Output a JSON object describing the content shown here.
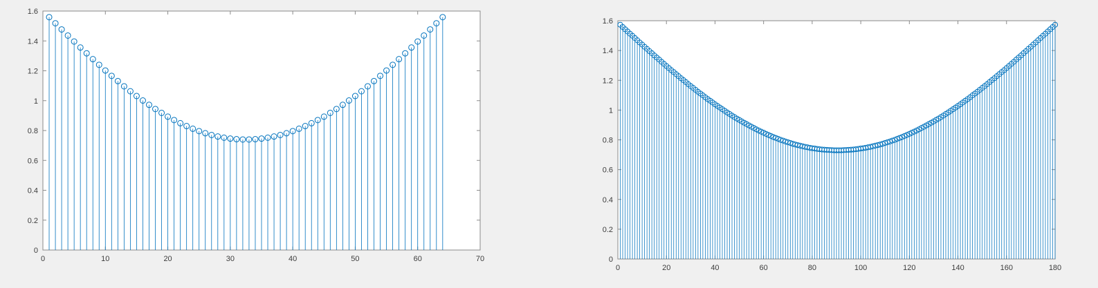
{
  "figure": {
    "background_color": "#f0f0f0",
    "plot_background_color": "#ffffff",
    "axis_box_color": "#8a8a8a",
    "tick_label_color": "#3c3c3c",
    "stem_color": "#0072BD"
  },
  "chart_data": [
    {
      "type": "stem",
      "title": "",
      "xlabel": "",
      "ylabel": "",
      "grid": false,
      "legend": null,
      "marker": "open-circle",
      "xlim": [
        0,
        70
      ],
      "ylim": [
        0,
        1.6
      ],
      "xticks": [
        0,
        10,
        20,
        30,
        40,
        50,
        60,
        70
      ],
      "xtick_labels": [
        "0",
        "10",
        "20",
        "30",
        "40",
        "50",
        "60",
        "70"
      ],
      "yticks": [
        0,
        0.2,
        0.4,
        0.6,
        0.8,
        1,
        1.2,
        1.4,
        1.6
      ],
      "ytick_labels": [
        "0",
        "0.2",
        "0.4",
        "0.6",
        "0.8",
        "1",
        "1.2",
        "1.4",
        "1.6"
      ],
      "x_start": 1,
      "x_description": "integer sample indices 1..64",
      "values": [
        1.559,
        1.518,
        1.477,
        1.436,
        1.396,
        1.356,
        1.317,
        1.278,
        1.24,
        1.202,
        1.166,
        1.131,
        1.096,
        1.063,
        1.031,
        1.001,
        0.972,
        0.944,
        0.918,
        0.893,
        0.87,
        0.849,
        0.83,
        0.812,
        0.796,
        0.782,
        0.77,
        0.76,
        0.752,
        0.746,
        0.742,
        0.74,
        0.74,
        0.742,
        0.746,
        0.752,
        0.76,
        0.77,
        0.782,
        0.796,
        0.812,
        0.83,
        0.849,
        0.87,
        0.893,
        0.918,
        0.944,
        0.972,
        1.001,
        1.031,
        1.063,
        1.096,
        1.131,
        1.166,
        1.202,
        1.24,
        1.278,
        1.317,
        1.356,
        1.396,
        1.436,
        1.477,
        1.518,
        1.559
      ]
    },
    {
      "type": "stem",
      "title": "",
      "xlabel": "",
      "ylabel": "",
      "grid": false,
      "legend": null,
      "marker": "open-circle",
      "xlim": [
        0,
        180
      ],
      "ylim": [
        0,
        1.6
      ],
      "xticks": [
        0,
        20,
        40,
        60,
        80,
        100,
        120,
        140,
        160,
        180
      ],
      "xtick_labels": [
        "0",
        "20",
        "40",
        "60",
        "80",
        "100",
        "120",
        "140",
        "160",
        "180"
      ],
      "yticks": [
        0,
        0.2,
        0.4,
        0.6,
        0.8,
        1,
        1.2,
        1.4,
        1.6
      ],
      "ytick_labels": [
        "0",
        "0.2",
        "0.4",
        "0.6",
        "0.8",
        "1",
        "1.2",
        "1.4",
        "1.6"
      ],
      "x_start": 1,
      "x_description": "integer sample indices 1..180",
      "values": [
        1.573,
        1.558,
        1.543,
        1.528,
        1.513,
        1.499,
        1.484,
        1.469,
        1.454,
        1.44,
        1.425,
        1.411,
        1.396,
        1.382,
        1.367,
        1.353,
        1.339,
        1.324,
        1.31,
        1.296,
        1.282,
        1.268,
        1.255,
        1.241,
        1.228,
        1.214,
        1.201,
        1.188,
        1.174,
        1.161,
        1.149,
        1.136,
        1.123,
        1.111,
        1.099,
        1.086,
        1.074,
        1.063,
        1.051,
        1.039,
        1.028,
        1.017,
        1.006,
        0.995,
        0.984,
        0.974,
        0.963,
        0.953,
        0.943,
        0.934,
        0.924,
        0.915,
        0.906,
        0.897,
        0.888,
        0.88,
        0.871,
        0.863,
        0.855,
        0.848,
        0.84,
        0.833,
        0.826,
        0.819,
        0.813,
        0.807,
        0.8,
        0.795,
        0.789,
        0.784,
        0.779,
        0.774,
        0.769,
        0.765,
        0.761,
        0.757,
        0.753,
        0.75,
        0.747,
        0.744,
        0.742,
        0.739,
        0.737,
        0.735,
        0.734,
        0.733,
        0.732,
        0.731,
        0.73,
        0.73,
        0.73,
        0.73,
        0.731,
        0.732,
        0.733,
        0.734,
        0.735,
        0.737,
        0.739,
        0.742,
        0.744,
        0.747,
        0.75,
        0.753,
        0.757,
        0.761,
        0.765,
        0.769,
        0.774,
        0.779,
        0.784,
        0.789,
        0.795,
        0.8,
        0.807,
        0.813,
        0.819,
        0.826,
        0.833,
        0.84,
        0.848,
        0.855,
        0.863,
        0.871,
        0.88,
        0.888,
        0.897,
        0.906,
        0.915,
        0.924,
        0.934,
        0.943,
        0.953,
        0.963,
        0.974,
        0.984,
        0.995,
        1.006,
        1.017,
        1.028,
        1.039,
        1.051,
        1.063,
        1.074,
        1.086,
        1.099,
        1.111,
        1.123,
        1.136,
        1.149,
        1.161,
        1.174,
        1.188,
        1.201,
        1.214,
        1.228,
        1.241,
        1.255,
        1.268,
        1.282,
        1.296,
        1.31,
        1.324,
        1.339,
        1.353,
        1.367,
        1.382,
        1.396,
        1.411,
        1.425,
        1.44,
        1.454,
        1.469,
        1.484,
        1.499,
        1.513,
        1.528,
        1.543,
        1.558,
        1.573
      ]
    }
  ]
}
